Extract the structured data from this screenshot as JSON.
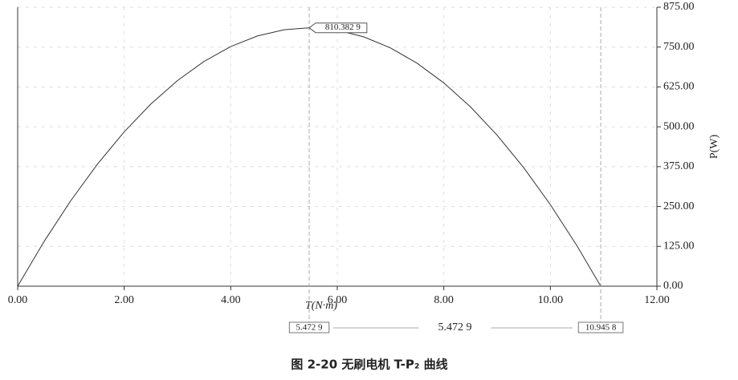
{
  "chart_data": {
    "type": "line",
    "caption": "图 2-20  无刷电机 T-P₂ 曲线",
    "x_label": "T(N·m)",
    "y_label": "P(W)",
    "x": [
      0,
      0.5,
      1,
      1.5,
      2,
      2.5,
      3,
      3.5,
      4,
      4.5,
      5,
      5.4729,
      6,
      6.5,
      7,
      7.5,
      8,
      8.5,
      9,
      9.5,
      10,
      10.5,
      10.9458
    ],
    "values": [
      0,
      141.3,
      269.1,
      383.3,
      484.1,
      571.3,
      644.9,
      705.1,
      751.7,
      784.8,
      804.3,
      810.4,
      802.9,
      781.9,
      747.3,
      699.2,
      637.6,
      562.5,
      473.8,
      371.6,
      255.9,
      126.6,
      0
    ],
    "color": "#333333",
    "xlim": [
      0,
      12
    ],
    "ylim": [
      0,
      875
    ],
    "xticks": [
      {
        "value": 0,
        "label": "0.00"
      },
      {
        "value": 2,
        "label": "2.00"
      },
      {
        "value": 4,
        "label": "4.00"
      },
      {
        "value": 6,
        "label": "6.00"
      },
      {
        "value": 8,
        "label": "8.00"
      },
      {
        "value": 10,
        "label": "10.00"
      },
      {
        "value": 12,
        "label": "12.00"
      }
    ],
    "yticks": [
      {
        "value": 0,
        "label": "0.00"
      },
      {
        "value": 125,
        "label": "125.00"
      },
      {
        "value": 250,
        "label": "250.00"
      },
      {
        "value": 375,
        "label": "375.00"
      },
      {
        "value": 500,
        "label": "500.00"
      },
      {
        "value": 625,
        "label": "625.00"
      },
      {
        "value": 750,
        "label": "750.00"
      },
      {
        "value": 875,
        "label": "875.00"
      }
    ],
    "grid": true,
    "cursors": [
      {
        "value": 5.4729,
        "label": "5.472 9"
      },
      {
        "value": 10.9458,
        "label": "10.945 8"
      }
    ],
    "cursor_delta": {
      "value": 5.4729,
      "label": "5.472 9"
    },
    "peak_label": {
      "value": 810.3829,
      "label": "810.382 9"
    }
  }
}
